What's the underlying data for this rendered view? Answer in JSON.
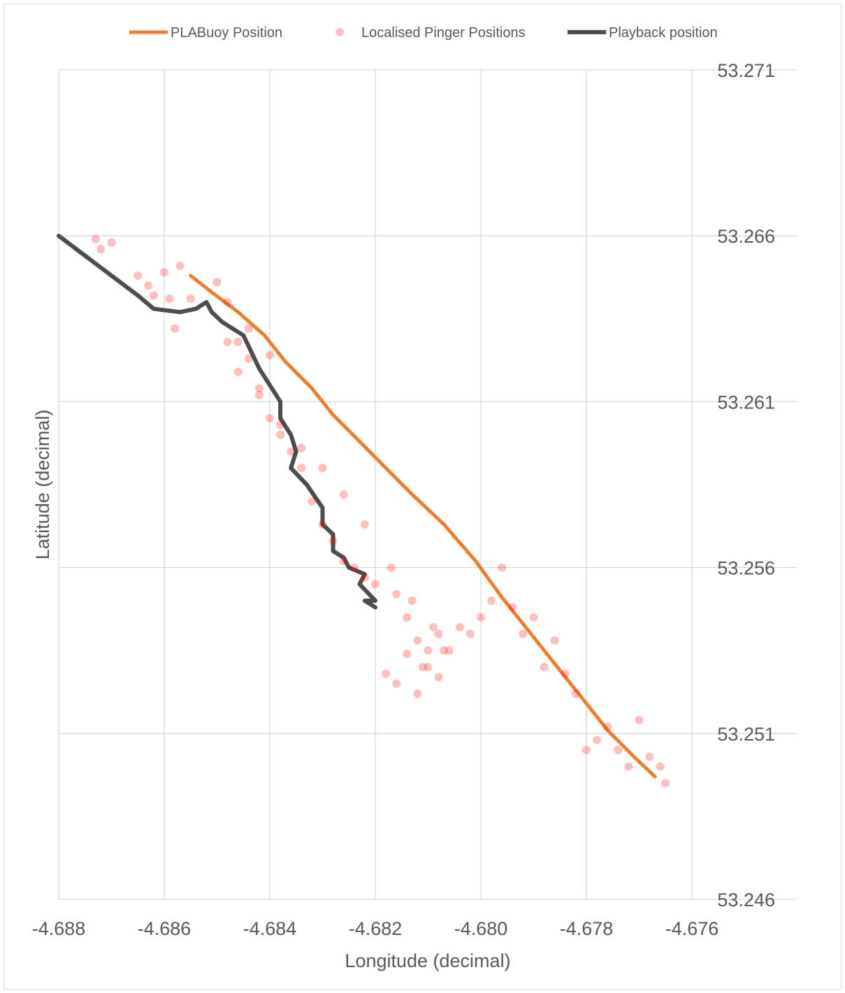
{
  "chart_data": {
    "type": "scatter",
    "title": "",
    "xlabel": "Longitude (decimal)",
    "ylabel": "Latitude (decimal)",
    "xlim": [
      -4.688,
      -4.676
    ],
    "ylim": [
      53.246,
      53.271
    ],
    "xticks": [
      -4.688,
      -4.686,
      -4.684,
      -4.682,
      -4.68,
      -4.678,
      -4.676
    ],
    "yticks": [
      53.246,
      53.251,
      53.256,
      53.261,
      53.266,
      53.271
    ],
    "xtick_labels": [
      "-4.688",
      "-4.686",
      "-4.684",
      "-4.682",
      "-4.680",
      "-4.678",
      "-4.676"
    ],
    "ytick_labels": [
      "53.246",
      "53.251",
      "53.256",
      "53.261",
      "53.266",
      "53.271"
    ],
    "grid": true,
    "legend_position": "top",
    "series": [
      {
        "name": "PLABuoy Position",
        "kind": "line",
        "color": "#ed7d31",
        "x": [
          -4.6855,
          -4.6851,
          -4.6846,
          -4.6841,
          -4.6837,
          -4.6832,
          -4.6828,
          -4.6823,
          -4.6818,
          -4.6813,
          -4.6807,
          -4.6801,
          -4.6796,
          -4.6791,
          -4.6786,
          -4.6781,
          -4.6776,
          -4.6771,
          -4.6767
        ],
        "y": [
          53.2648,
          53.2643,
          53.2637,
          53.263,
          53.2622,
          53.2614,
          53.2606,
          53.2598,
          53.259,
          53.2582,
          53.2573,
          53.2562,
          53.2551,
          53.2541,
          53.2531,
          53.2521,
          53.2511,
          53.2503,
          53.2497
        ]
      },
      {
        "name": "Playback position",
        "kind": "line",
        "color": "#4d4d4d",
        "x": [
          -4.688,
          -4.6875,
          -4.687,
          -4.6865,
          -4.6862,
          -4.6857,
          -4.6854,
          -4.6852,
          -4.6851,
          -4.6849,
          -4.6845,
          -4.6842,
          -4.684,
          -4.6838,
          -4.6838,
          -4.6836,
          -4.6835,
          -4.6836,
          -4.6833,
          -4.683,
          -4.683,
          -4.6828,
          -4.6828,
          -4.6826,
          -4.6825,
          -4.6822,
          -4.6823,
          -4.682,
          -4.6822,
          -4.682
        ],
        "y": [
          53.266,
          53.2654,
          53.2648,
          53.2642,
          53.2638,
          53.2637,
          53.2638,
          53.264,
          53.2637,
          53.2634,
          53.263,
          53.262,
          53.2615,
          53.261,
          53.2605,
          53.26,
          53.2595,
          53.259,
          53.2585,
          53.2578,
          53.2573,
          53.257,
          53.2565,
          53.2563,
          53.256,
          53.2558,
          53.2555,
          53.255,
          53.255,
          53.2548
        ]
      },
      {
        "name": "Localised Pinger Positions",
        "kind": "scatter",
        "color": "#ff0000",
        "x": [
          -4.6873,
          -4.6872,
          -4.687,
          -4.6865,
          -4.6863,
          -4.6862,
          -4.686,
          -4.6859,
          -4.6858,
          -4.6857,
          -4.6855,
          -4.685,
          -4.6848,
          -4.6846,
          -4.6844,
          -4.6842,
          -4.684,
          -4.6838,
          -4.6836,
          -4.6834,
          -4.6832,
          -4.683,
          -4.6828,
          -4.6826,
          -4.6824,
          -4.6822,
          -4.682,
          -4.6816,
          -4.6814,
          -4.6812,
          -4.681,
          -4.6808,
          -4.6806,
          -4.6804,
          -4.6802,
          -4.68,
          -4.6798,
          -4.6796,
          -4.6794,
          -4.6792,
          -4.679,
          -4.6788,
          -4.6786,
          -4.6784,
          -4.6782,
          -4.678,
          -4.6778,
          -4.6776,
          -4.6774,
          -4.6772,
          -4.677,
          -4.6768,
          -4.6766,
          -4.6765,
          -4.6814,
          -4.6811,
          -4.6808,
          -4.6818,
          -4.6816,
          -4.6812,
          -4.681,
          -4.6807,
          -4.6809,
          -4.6813,
          -4.6817,
          -4.6822,
          -4.6826,
          -4.683,
          -4.6834,
          -4.6838,
          -4.6842,
          -4.6846,
          -4.6848,
          -4.6844,
          -4.684
        ],
        "y": [
          53.2659,
          53.2656,
          53.2658,
          53.2648,
          53.2645,
          53.2642,
          53.2649,
          53.2641,
          53.2632,
          53.2651,
          53.2641,
          53.2646,
          53.264,
          53.2628,
          53.2623,
          53.2614,
          53.2605,
          53.26,
          53.2595,
          53.259,
          53.258,
          53.2573,
          53.2568,
          53.2562,
          53.256,
          53.2557,
          53.2555,
          53.2552,
          53.2545,
          53.2538,
          53.2535,
          53.254,
          53.2535,
          53.2542,
          53.254,
          53.2545,
          53.255,
          53.256,
          53.2548,
          53.254,
          53.2545,
          53.253,
          53.2538,
          53.2528,
          53.2522,
          53.2505,
          53.2508,
          53.2512,
          53.2505,
          53.25,
          53.2514,
          53.2503,
          53.25,
          53.2495,
          53.2534,
          53.253,
          53.2527,
          53.2528,
          53.2525,
          53.2522,
          53.253,
          53.2535,
          53.2542,
          53.255,
          53.256,
          53.2573,
          53.2582,
          53.259,
          53.2596,
          53.2603,
          53.2612,
          53.2619,
          53.2628,
          53.2632,
          53.2624
        ]
      }
    ]
  }
}
